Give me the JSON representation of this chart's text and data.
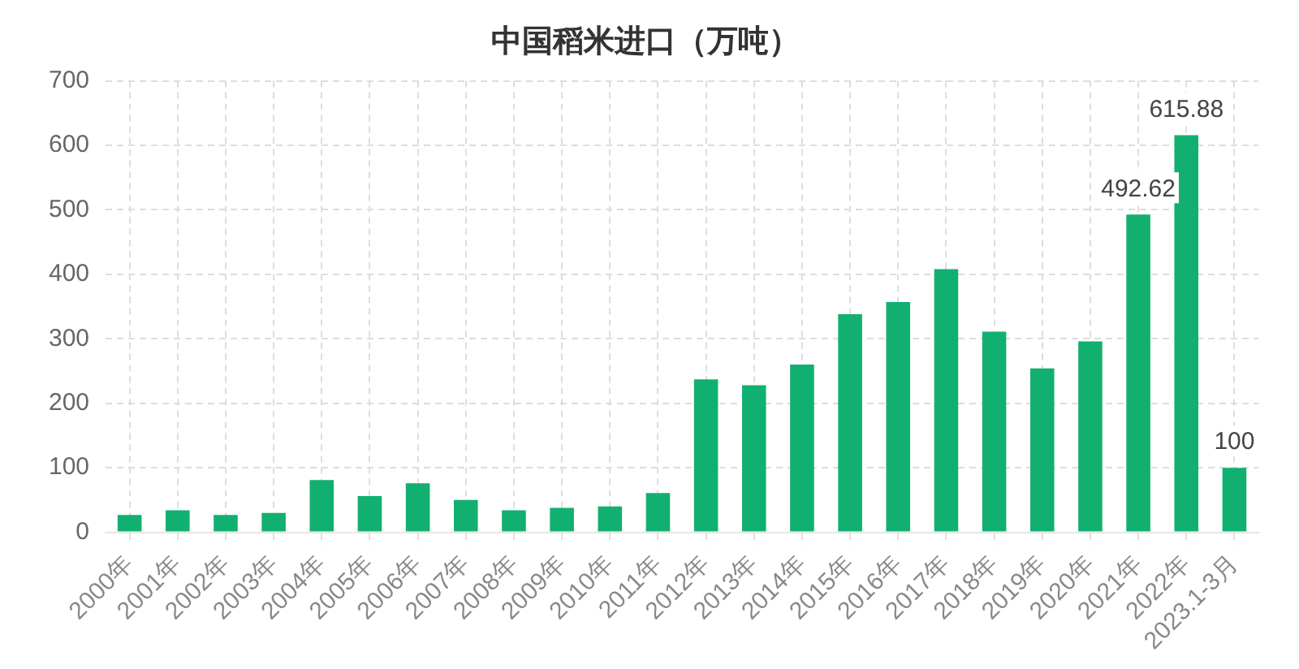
{
  "chart_data": {
    "type": "bar",
    "title": "中国稻米进口（万吨）",
    "categories": [
      "2000年",
      "2001年",
      "2002年",
      "2003年",
      "2004年",
      "2005年",
      "2006年",
      "2007年",
      "2008年",
      "2009年",
      "2010年",
      "2011年",
      "2012年",
      "2013年",
      "2014年",
      "2015年",
      "2016年",
      "2017年",
      "2018年",
      "2019年",
      "2020年",
      "2021年",
      "2022年",
      "2023.1-3月"
    ],
    "values": [
      27,
      34,
      27,
      30,
      81,
      56,
      76,
      50,
      34,
      38,
      40,
      61,
      237,
      228,
      260,
      338,
      357,
      408,
      311,
      254,
      296,
      492.62,
      615.88,
      100
    ],
    "value_labels": [
      null,
      null,
      null,
      null,
      null,
      null,
      null,
      null,
      null,
      null,
      null,
      null,
      null,
      null,
      null,
      null,
      null,
      null,
      null,
      null,
      null,
      "492.62",
      "615.88",
      "100"
    ],
    "color": "#12b070",
    "ylim": [
      0,
      700
    ],
    "yticks": [
      0,
      100,
      200,
      300,
      400,
      500,
      600,
      700
    ],
    "grid": true,
    "legend": false
  }
}
